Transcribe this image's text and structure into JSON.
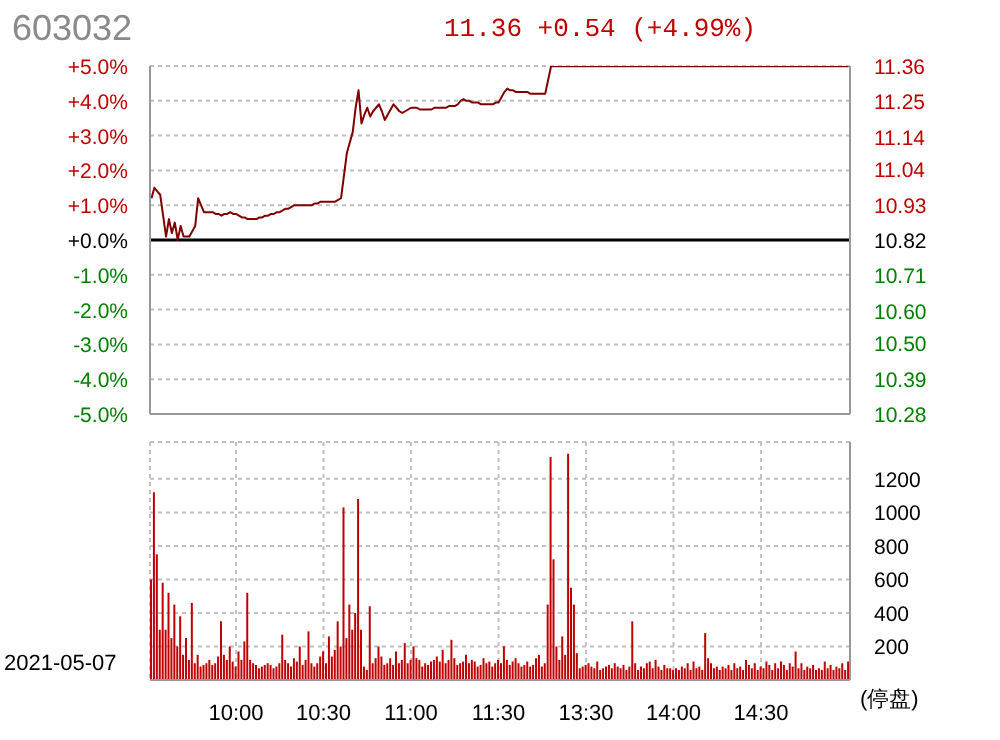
{
  "chart_data": [
    {
      "type": "line",
      "title": "603032",
      "subtitle": "11.36 +0.54 (+4.99%)",
      "categories": [
        null,
        null,
        null,
        null,
        null,
        null,
        null,
        null,
        null,
        null,
        null,
        null,
        null,
        null,
        null,
        null,
        null,
        null,
        null,
        null,
        null,
        null,
        null,
        null,
        null,
        null,
        null,
        null,
        null,
        null,
        null,
        null,
        null,
        null,
        null,
        null,
        null,
        null,
        null,
        null,
        null,
        null,
        null,
        null,
        null,
        null,
        null,
        null,
        null,
        null,
        null,
        null,
        null,
        null,
        null,
        null,
        null,
        null,
        null,
        null,
        null,
        null,
        null,
        null,
        null,
        null,
        null,
        null,
        null,
        null,
        null,
        null,
        null,
        null,
        null,
        null,
        null,
        null,
        null,
        null,
        null,
        null,
        null,
        null,
        null,
        null,
        null,
        null,
        null,
        null,
        null,
        null,
        null,
        null,
        null,
        null,
        null,
        null,
        null,
        null,
        null,
        null,
        null,
        null,
        null,
        null,
        null,
        null,
        null,
        null,
        null,
        null,
        null,
        null,
        null,
        null,
        null,
        null,
        null,
        null,
        null,
        null,
        null,
        null,
        null,
        null,
        null,
        null,
        null,
        null,
        null,
        null,
        null,
        null,
        null,
        null,
        null,
        null,
        null,
        null,
        null,
        null,
        null,
        null,
        null,
        null,
        null,
        null,
        null,
        null,
        null,
        null,
        null,
        null,
        null,
        null,
        null,
        null,
        null,
        null,
        null,
        null,
        null,
        null,
        null,
        null,
        null,
        null,
        null,
        null,
        null,
        null,
        null,
        null,
        null,
        null,
        null,
        null,
        null,
        null,
        null,
        null,
        null,
        null,
        null,
        null,
        null,
        null,
        null,
        null,
        null,
        null,
        null,
        null,
        null,
        null,
        null,
        null,
        null,
        null,
        null,
        null,
        null,
        null,
        null,
        null,
        null,
        null,
        null,
        null,
        null,
        null,
        null,
        null,
        null,
        null,
        null,
        null,
        null,
        null,
        null,
        null,
        null,
        null,
        null,
        null,
        null,
        null,
        null,
        null,
        null,
        null,
        null,
        null,
        null,
        null,
        null,
        null,
        null,
        null
      ],
      "series": [
        {
          "color": "#800000",
          "values": [
            1.2,
            1.5,
            1.4,
            1.3,
            0.7,
            0.1,
            0.6,
            0.2,
            0.5,
            0.0,
            0.4,
            0.1,
            0.1,
            0.1,
            0.25,
            0.4,
            1.2,
            1.0,
            0.8,
            0.8,
            0.8,
            0.8,
            0.75,
            0.75,
            0.7,
            0.75,
            0.75,
            0.8,
            0.75,
            0.75,
            0.7,
            0.65,
            0.65,
            0.6,
            0.6,
            0.6,
            0.6,
            0.65,
            0.65,
            0.7,
            0.7,
            0.75,
            0.75,
            0.8,
            0.8,
            0.85,
            0.9,
            0.9,
            0.95,
            1.0,
            1.0,
            1.0,
            1.0,
            1.0,
            1.0,
            1.0,
            1.05,
            1.05,
            1.1,
            1.1,
            1.1,
            1.1,
            1.1,
            1.1,
            1.15,
            1.2,
            1.85,
            2.5,
            2.8,
            3.1,
            3.8,
            4.3,
            3.35,
            3.6,
            3.8,
            3.55,
            3.7,
            3.8,
            3.9,
            3.7,
            3.45,
            3.6,
            3.75,
            3.9,
            3.8,
            3.7,
            3.65,
            3.7,
            3.75,
            3.8,
            3.8,
            3.8,
            3.75,
            3.75,
            3.75,
            3.75,
            3.75,
            3.8,
            3.8,
            3.8,
            3.8,
            3.8,
            3.85,
            3.85,
            3.85,
            3.9,
            4.0,
            4.05,
            4.0,
            4.0,
            3.95,
            3.95,
            3.95,
            3.9,
            3.9,
            3.9,
            3.9,
            3.9,
            3.95,
            3.95,
            4.1,
            4.25,
            4.35,
            4.3,
            4.3,
            4.25,
            4.25,
            4.25,
            4.25,
            4.25,
            4.2,
            4.2,
            4.2,
            4.2,
            4.2,
            4.2,
            4.6,
            4.99,
            4.99,
            4.99,
            4.99,
            4.99,
            4.99,
            4.99,
            4.99,
            4.99,
            4.99,
            4.99,
            4.99,
            4.99,
            4.99,
            4.99,
            4.99,
            4.99,
            4.99,
            4.99,
            4.99,
            4.99,
            4.99,
            4.99,
            4.99,
            4.99,
            4.99,
            4.99,
            4.99,
            4.99,
            4.99,
            4.99,
            4.99,
            4.99,
            4.99,
            4.99,
            4.99,
            4.99,
            4.99,
            4.99,
            4.99,
            4.99,
            4.99,
            4.99,
            4.99,
            4.99,
            4.99,
            4.99,
            4.99,
            4.99,
            4.99,
            4.99,
            4.99,
            4.99,
            4.99,
            4.99,
            4.99,
            4.99,
            4.99,
            4.99,
            4.99,
            4.99,
            4.99,
            4.99,
            4.99,
            4.99,
            4.99,
            4.99,
            4.99,
            4.99,
            4.99,
            4.99,
            4.99,
            4.99,
            4.99,
            4.99,
            4.99,
            4.99,
            4.99,
            4.99,
            4.99,
            4.99,
            4.99,
            4.99,
            4.99,
            4.99,
            4.99,
            4.99,
            4.99,
            4.99,
            4.99,
            4.99,
            4.99,
            4.99,
            4.99,
            4.99,
            4.99,
            4.99,
            4.99,
            4.99,
            4.99,
            4.99,
            4.99,
            4.99
          ]
        }
      ],
      "ylim": [
        -5,
        5
      ],
      "yticks": [
        {
          "value": 5,
          "label": "+5.0%"
        },
        {
          "value": 4,
          "label": "+4.0%"
        },
        {
          "value": 3,
          "label": "+3.0%"
        },
        {
          "value": 2,
          "label": "+2.0%"
        },
        {
          "value": 1,
          "label": "+1.0%"
        },
        {
          "value": 0,
          "label": "+0.0%"
        },
        {
          "value": -1,
          "label": "-1.0%"
        },
        {
          "value": -2,
          "label": "-2.0%"
        },
        {
          "value": -3,
          "label": "-3.0%"
        },
        {
          "value": -4,
          "label": "-4.0%"
        },
        {
          "value": -5,
          "label": "-5.0%"
        }
      ],
      "y2lim": [
        10.28,
        11.36
      ],
      "y2ticks": [
        11.36,
        11.25,
        11.14,
        11.04,
        10.93,
        10.82,
        10.71,
        {
          "value": 10.6,
          "label": "10.60"
        },
        {
          "value": 10.5,
          "label": "10.50"
        },
        10.39,
        10.28
      ],
      "ref_lines": [
        {
          "axis": "y",
          "value": 0,
          "color": "#000000"
        }
      ],
      "grid": true,
      "tick_labels": "y"
    },
    {
      "type": "bar",
      "annotations": [
        "2021-05-07",
        "(停盘)"
      ],
      "categories": [
        null,
        null,
        null,
        null,
        null,
        null,
        null,
        null,
        null,
        null,
        null,
        null,
        null,
        null,
        null,
        null,
        null,
        null,
        null,
        null,
        null,
        null,
        null,
        null,
        null,
        null,
        null,
        null,
        null,
        "10:00",
        null,
        null,
        null,
        null,
        null,
        null,
        null,
        null,
        null,
        null,
        null,
        null,
        null,
        null,
        null,
        null,
        null,
        null,
        null,
        null,
        null,
        null,
        null,
        null,
        null,
        null,
        null,
        null,
        null,
        "10:30",
        null,
        null,
        null,
        null,
        null,
        null,
        null,
        null,
        null,
        null,
        null,
        null,
        null,
        null,
        null,
        null,
        null,
        null,
        null,
        null,
        null,
        null,
        null,
        null,
        null,
        null,
        null,
        null,
        null,
        "11:00",
        null,
        null,
        null,
        null,
        null,
        null,
        null,
        null,
        null,
        null,
        null,
        null,
        null,
        null,
        null,
        null,
        null,
        null,
        null,
        null,
        null,
        null,
        null,
        null,
        null,
        null,
        null,
        null,
        null,
        "11:30",
        null,
        null,
        null,
        null,
        null,
        null,
        null,
        null,
        null,
        null,
        null,
        null,
        null,
        null,
        null,
        null,
        null,
        null,
        null,
        null,
        null,
        null,
        null,
        null,
        null,
        null,
        null,
        null,
        null,
        "13:30",
        null,
        null,
        null,
        null,
        null,
        null,
        null,
        null,
        null,
        null,
        null,
        null,
        null,
        null,
        null,
        null,
        null,
        null,
        null,
        null,
        null,
        null,
        null,
        null,
        null,
        null,
        null,
        null,
        null,
        "14:00",
        null,
        null,
        null,
        null,
        null,
        null,
        null,
        null,
        null,
        null,
        null,
        null,
        null,
        null,
        null,
        null,
        null,
        null,
        null,
        null,
        null,
        null,
        null,
        null,
        null,
        null,
        null,
        null,
        null,
        "14:30",
        null,
        null,
        null,
        null,
        null,
        null,
        null,
        null,
        null,
        null,
        null,
        null,
        null,
        null,
        null,
        null,
        null,
        null,
        null,
        null,
        null,
        null,
        null,
        null,
        null,
        null,
        null,
        null,
        null,
        null
      ],
      "values": [
        600,
        1120,
        750,
        300,
        580,
        300,
        520,
        250,
        450,
        200,
        380,
        150,
        250,
        120,
        460,
        100,
        150,
        80,
        90,
        100,
        120,
        90,
        100,
        140,
        350,
        150,
        120,
        200,
        110,
        80,
        170,
        120,
        230,
        520,
        120,
        100,
        90,
        70,
        80,
        90,
        100,
        90,
        70,
        80,
        100,
        270,
        120,
        100,
        80,
        130,
        110,
        200,
        90,
        120,
        290,
        100,
        80,
        100,
        140,
        170,
        100,
        260,
        140,
        180,
        350,
        200,
        1030,
        250,
        450,
        300,
        400,
        1080,
        300,
        80,
        60,
        440,
        100,
        130,
        200,
        140,
        90,
        100,
        130,
        90,
        170,
        100,
        120,
        220,
        100,
        120,
        200,
        130,
        120,
        80,
        100,
        90,
        110,
        120,
        140,
        110,
        180,
        100,
        120,
        240,
        130,
        90,
        100,
        110,
        150,
        100,
        120,
        110,
        80,
        90,
        130,
        100,
        110,
        80,
        100,
        120,
        100,
        200,
        120,
        90,
        110,
        130,
        100,
        80,
        90,
        110,
        80,
        90,
        130,
        150,
        80,
        100,
        450,
        1330,
        720,
        200,
        120,
        260,
        150,
        1350,
        550,
        450,
        160,
        70,
        80,
        90,
        100,
        80,
        70,
        110,
        60,
        70,
        80,
        90,
        70,
        100,
        80,
        70,
        90,
        60,
        80,
        350,
        100,
        60,
        80,
        70,
        100,
        110,
        70,
        120,
        80,
        60,
        90,
        70,
        70,
        60,
        70,
        60,
        80,
        70,
        100,
        60,
        110,
        70,
        80,
        60,
        280,
        130,
        100,
        70,
        80,
        60,
        80,
        70,
        90,
        60,
        100,
        70,
        80,
        60,
        120,
        90,
        70,
        100,
        60,
        80,
        70,
        110,
        90,
        60,
        100,
        70,
        110,
        90,
        60,
        100,
        80,
        170,
        70,
        100,
        60,
        80,
        70,
        90,
        60,
        70,
        60,
        110,
        70,
        90,
        60,
        80,
        70,
        100,
        60,
        110
      ],
      "color": "#c00000",
      "ylim": [
        0,
        1420
      ],
      "yticks": [
        200,
        400,
        600,
        800,
        1000,
        1200
      ],
      "grid": true
    }
  ]
}
